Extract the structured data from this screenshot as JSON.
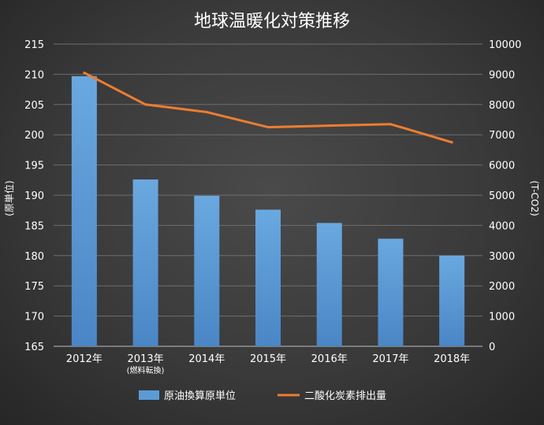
{
  "chart_data": {
    "type": "bar",
    "title": "地球温暖化対策推移",
    "categories": [
      "2012年",
      "2013年",
      "2014年",
      "2015年",
      "2016年",
      "2017年",
      "2018年"
    ],
    "category_sublabels": [
      "",
      "(燃料転換)",
      "",
      "",
      "",
      "",
      ""
    ],
    "ylabel_left": "(原単位)",
    "ylabel_right": "(T-CO2)",
    "ylim_left": [
      165,
      215
    ],
    "ylim_right": [
      0,
      10000
    ],
    "yticks_left": [
      "215",
      "210",
      "205",
      "200",
      "195",
      "190",
      "185",
      "180",
      "175",
      "170",
      "165"
    ],
    "yticks_right": [
      "10000",
      "9000",
      "8000",
      "7000",
      "6000",
      "5000",
      "4000",
      "3000",
      "2000",
      "1000",
      "0"
    ],
    "grid": true,
    "legend_position": "bottom",
    "series": [
      {
        "name": "原油換算原単位",
        "type": "bar",
        "axis": "left",
        "color": "#5b9bd5",
        "values": [
          209.7,
          192.6,
          189.9,
          187.6,
          185.4,
          182.8,
          180.0
        ]
      },
      {
        "name": "二酸化炭素排出量",
        "type": "line",
        "axis": "right",
        "color": "#ed7d31",
        "values": [
          9050,
          8000,
          7750,
          7250,
          7300,
          7350,
          6750
        ]
      }
    ]
  }
}
